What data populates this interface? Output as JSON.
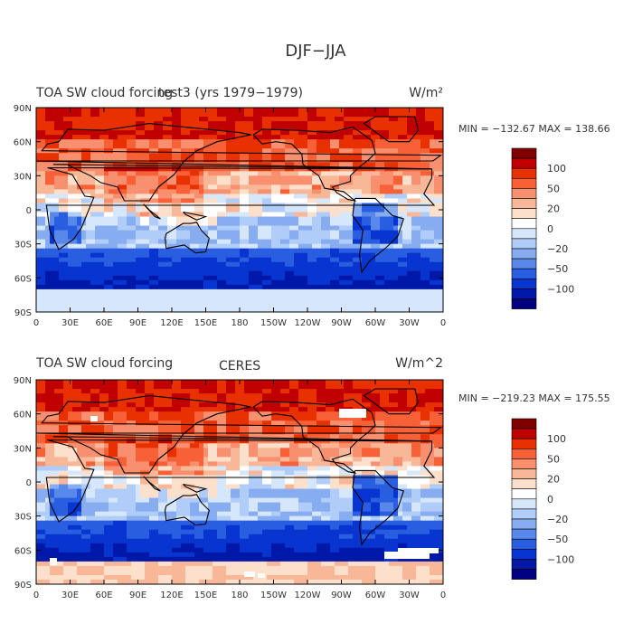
{
  "main_title": "DJF−JJA",
  "colorbar_labels": [
    "100",
    "50",
    "20",
    "0",
    "−20",
    "−50",
    "−100"
  ],
  "colors": [
    "#800000",
    "#c00000",
    "#e83000",
    "#f86038",
    "#f89070",
    "#f8b898",
    "#fce0cc",
    "#ffffff",
    "#d6e6fb",
    "#b0ccf8",
    "#88acf0",
    "#5888ea",
    "#2a5ee0",
    "#0835d0",
    "#0018a8",
    "#000080"
  ],
  "chart_data": [
    {
      "type": "heatmap",
      "title": "TOA SW cloud forcing",
      "subtitle": "test3 (yrs 1979−1979)",
      "units_html": "W/m²",
      "stats": "MIN = −132.67  MAX = 138.66",
      "min": -132.67,
      "max": 138.66,
      "x_ticks": [
        "0",
        "30E",
        "60E",
        "90E",
        "120E",
        "150E",
        "180",
        "150W",
        "120W",
        "90W",
        "60W",
        "30W",
        "0"
      ],
      "y_ticks": [
        "90N",
        "60N",
        "30N",
        "0",
        "30S",
        "60S",
        "90S"
      ],
      "colorbar": [
        100,
        50,
        20,
        0,
        -20,
        -50,
        -100
      ]
    },
    {
      "type": "heatmap",
      "title": "TOA SW cloud forcing",
      "subtitle": "CERES",
      "units_html": "W/m^2",
      "stats": "MIN = −219.23  MAX = 175.55",
      "min": -219.23,
      "max": 175.55,
      "x_ticks": [
        "0",
        "30E",
        "60E",
        "90E",
        "120E",
        "150E",
        "180",
        "150W",
        "120W",
        "90W",
        "60W",
        "30W",
        "0"
      ],
      "y_ticks": [
        "90N",
        "60N",
        "30N",
        "0",
        "30S",
        "60S",
        "90S"
      ],
      "colorbar": [
        100,
        50,
        20,
        0,
        -20,
        -50,
        -100
      ]
    }
  ]
}
